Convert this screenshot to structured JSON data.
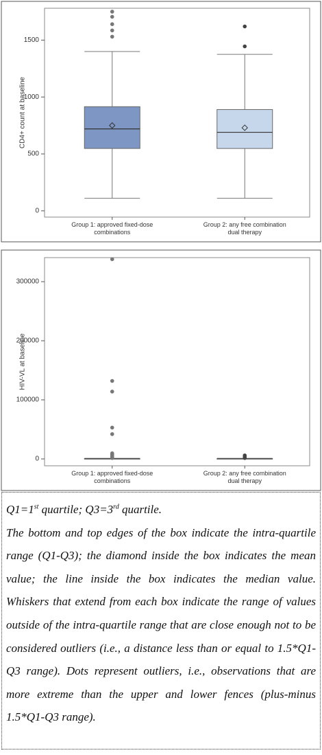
{
  "chart_data": [
    {
      "type": "box",
      "y_label": "CD4+ count at baseline",
      "categories": [
        "Group 1: approved fixed-dose combinations",
        "Group 2: any free combination dual therapy"
      ],
      "ylim": [
        -55,
        1780
      ],
      "yticks": [
        0,
        500,
        1000,
        1500
      ],
      "boxes": [
        {
          "color": "#7d96c3",
          "whisker_low": 110,
          "q1": 548,
          "median": 720,
          "q3": 915,
          "whisker_high": 1400,
          "mean": 750,
          "outliers": [
            1530,
            1585,
            1640,
            1705,
            1750
          ]
        },
        {
          "color": "#c6d7ec",
          "whisker_low": 110,
          "q1": 548,
          "median": 690,
          "q3": 890,
          "whisker_high": 1375,
          "mean": 730,
          "outliers": [
            1445,
            1620
          ]
        }
      ]
    },
    {
      "type": "box",
      "y_label": "HIV-VL at baseline",
      "categories": [
        "Group 1: approved fixed-dose combinations",
        "Group 2: any free combination dual therapy"
      ],
      "ylim": [
        -11600,
        340700
      ],
      "yticks": [
        0,
        100000,
        200000,
        300000
      ],
      "boxes": [
        {
          "color": "#7d96c3",
          "whisker_low": 0,
          "q1": 0,
          "median": 100,
          "q3": 400,
          "whisker_high": 1000,
          "outliers": [
            1500,
            2500,
            4000,
            6000,
            8000,
            9500,
            42000,
            53000,
            114000,
            132000,
            338000
          ]
        },
        {
          "color": "#c6d7ec",
          "whisker_low": 0,
          "q1": 0,
          "median": 100,
          "q3": 400,
          "whisker_high": 1000,
          "outliers": [
            1500,
            3500,
            6000
          ]
        }
      ]
    }
  ],
  "note": {
    "quartiles": [
      "Q1=1",
      "st",
      " quartile; Q3=3",
      "rd",
      " quartile."
    ],
    "body": "The bottom and top edges of the box indicate the intra-quartile range (Q1-Q3); the diamond inside the box indicates the mean value; the line inside the box indicates the median value. Whiskers that extend from each box indicate the range of values outside of the intra-quartile range that are close enough not to be considered outliers (i.e., a distance less than or equal to 1.5*Q1-Q3 range). Dots represent outliers, i.e., observations that are more extreme than the upper and lower fences (plus-minus 1.5*Q1-Q3 range)."
  }
}
